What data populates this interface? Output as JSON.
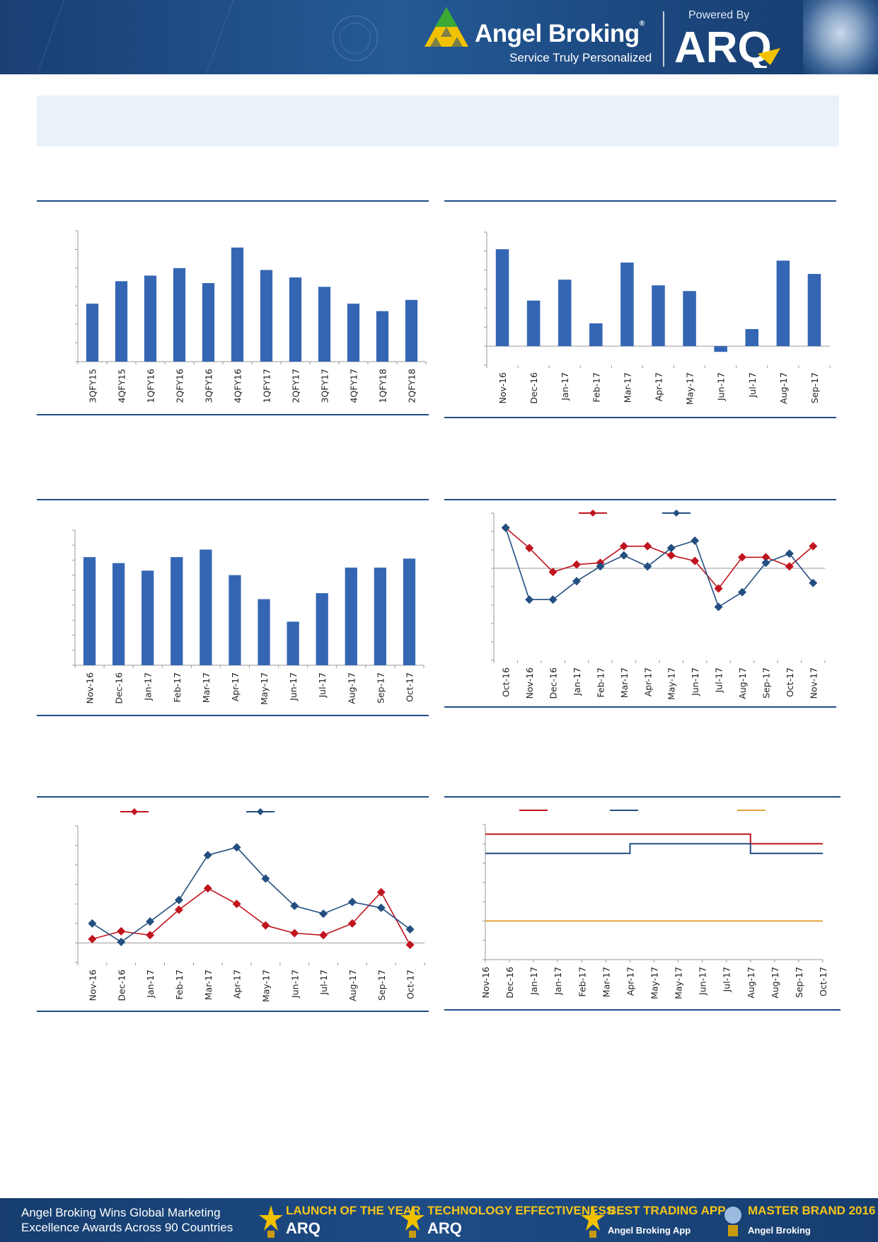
{
  "header": {
    "brand_name": "Angel Broking",
    "brand_reg": "®",
    "tagline": "Service Truly Personalized",
    "powered_by": "Powered By",
    "arq": "ARQ"
  },
  "colors": {
    "bar": "#3566b4",
    "red": "#c0141e",
    "blue": "#234e80",
    "orange": "#e3a33a",
    "rule": "#1f4e85"
  },
  "chart_data": [
    {
      "type": "bar",
      "categories": [
        "3QFY15",
        "4QFY15",
        "1QFY16",
        "2QFY16",
        "3QFY16",
        "4QFY16",
        "1QFY17",
        "2QFY17",
        "3QFY17",
        "4QFY17",
        "1QFY18",
        "2QFY18"
      ],
      "values": [
        3.1,
        4.3,
        4.6,
        5.0,
        4.2,
        6.1,
        4.9,
        4.5,
        4.0,
        3.1,
        2.7,
        3.3
      ],
      "ylim": [
        0,
        7
      ]
    },
    {
      "type": "bar",
      "categories": [
        "Nov-16",
        "Dec-16",
        "Jan-17",
        "Feb-17",
        "Mar-17",
        "Apr-17",
        "May-17",
        "Jun-17",
        "Jul-17",
        "Aug-17",
        "Sep-17"
      ],
      "values": [
        5.1,
        2.4,
        3.5,
        1.2,
        4.4,
        3.2,
        2.9,
        -0.3,
        0.9,
        4.5,
        3.8
      ],
      "ylim": [
        -1,
        6
      ]
    },
    {
      "type": "bar",
      "categories": [
        "Nov-16",
        "Dec-16",
        "Jan-17",
        "Feb-17",
        "Mar-17",
        "Apr-17",
        "May-17",
        "Jun-17",
        "Jul-17",
        "Aug-17",
        "Sep-17",
        "Oct-17"
      ],
      "values": [
        7.2,
        6.8,
        6.3,
        7.2,
        7.7,
        6.0,
        4.4,
        2.9,
        4.8,
        6.5,
        6.5,
        7.1
      ],
      "ylim": [
        0,
        9
      ]
    },
    {
      "type": "line",
      "categories": [
        "Oct-16",
        "Nov-16",
        "Dec-16",
        "Jan-17",
        "Feb-17",
        "Mar-17",
        "Apr-17",
        "May-17",
        "Jun-17",
        "Jul-17",
        "Aug-17",
        "Sep-17",
        "Oct-17",
        "Nov-17"
      ],
      "series": [
        {
          "values": [
            2.2,
            1.1,
            -0.2,
            0.2,
            0.3,
            1.2,
            1.2,
            0.7,
            0.4,
            -1.1,
            0.6,
            0.6,
            0.1,
            1.2
          ]
        },
        {
          "values": [
            2.2,
            -1.7,
            -1.7,
            -0.7,
            0.1,
            0.7,
            0.1,
            1.1,
            1.5,
            -2.1,
            -1.3,
            0.3,
            0.8,
            -0.8
          ]
        }
      ],
      "ylim": [
        -5,
        3
      ]
    },
    {
      "type": "line",
      "categories": [
        "Nov-16",
        "Dec-16",
        "Jan-17",
        "Feb-17",
        "Mar-17",
        "Apr-17",
        "May-17",
        "Jun-17",
        "Jul-17",
        "Aug-17",
        "Sep-17",
        "Oct-17"
      ],
      "series": [
        {
          "values": [
            0.2,
            0.6,
            0.4,
            1.7,
            2.8,
            2.0,
            0.9,
            0.5,
            0.4,
            1.0,
            2.6,
            -0.1
          ]
        },
        {
          "values": [
            1.0,
            0.05,
            1.1,
            2.2,
            4.5,
            4.9,
            3.3,
            1.9,
            1.5,
            2.1,
            1.8,
            0.7
          ]
        }
      ],
      "ylim": [
        -1,
        6
      ]
    },
    {
      "type": "line",
      "categories": [
        "Nov-16",
        "Dec-16",
        "Jan-17",
        "Jan-17",
        "Feb-17",
        "Mar-17",
        "Apr-17",
        "May-17",
        "May-17",
        "Jun-17",
        "Jul-17",
        "Aug-17",
        "Aug-17",
        "Sep-17",
        "Oct-17"
      ],
      "series": [
        {
          "values": [
            6.25,
            6.25,
            6.25,
            6.25,
            6.25,
            6.25,
            6.25,
            6.25,
            6.25,
            6.25,
            6.25,
            6.0,
            6.0,
            6.0,
            6.0
          ]
        },
        {
          "values": [
            5.75,
            5.75,
            5.75,
            5.75,
            5.75,
            5.75,
            6.0,
            6.0,
            6.0,
            6.0,
            6.0,
            5.75,
            5.75,
            5.75,
            5.75
          ]
        },
        {
          "values": [
            4.0,
            4.0,
            4.0,
            4.0,
            4.0,
            4.0,
            4.0,
            4.0,
            4.0,
            4.0,
            4.0,
            4.0,
            4.0,
            4.0,
            4.0
          ]
        }
      ],
      "ylim": [
        3,
        6.5
      ]
    }
  ],
  "footer": {
    "line1": "Angel Broking Wins Global Marketing",
    "line2": "Excellence Awards Across 90 Countries",
    "awards": [
      {
        "title": "LAUNCH OF THE YEAR",
        "sub": "ARQ"
      },
      {
        "title": "TECHNOLOGY EFFECTIVENESS",
        "sub": "ARQ"
      },
      {
        "title": "BEST TRADING APP",
        "sub": "Angel Broking App"
      },
      {
        "title": "MASTER BRAND 2016",
        "sub": "Angel Broking"
      }
    ]
  }
}
